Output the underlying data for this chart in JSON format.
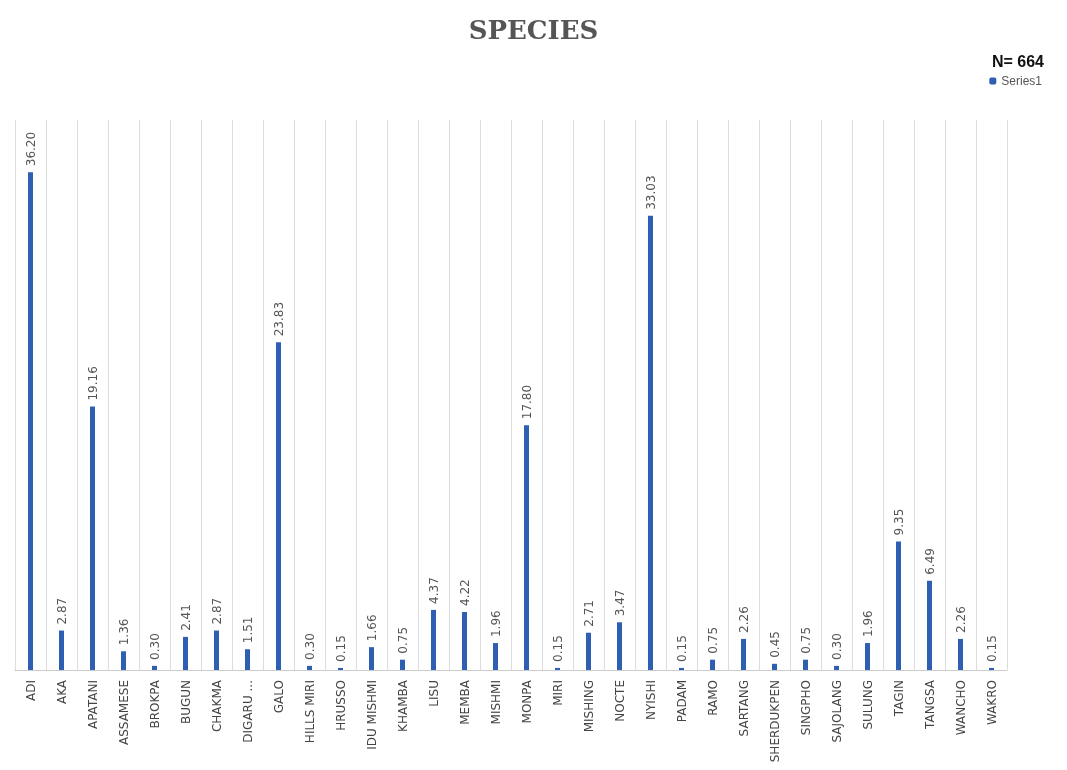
{
  "chart_data": {
    "type": "bar",
    "title": "SPECIES",
    "legend_title": "N= 664",
    "legend": "top right",
    "grid": "x",
    "categories": [
      "ADI",
      "AKA",
      "APATANI",
      "ASSAMESE",
      "BROKPA",
      "BUGUN",
      "CHAKMA",
      "DIGARU ...",
      "GALO",
      "HILLS MIRI",
      "HRUSSO",
      "IDU MISHMI",
      "KHAMBA",
      "LISU",
      "MEMBA",
      "MISHMI",
      "MONPA",
      "MIRI",
      "MISHING",
      "NOCTE",
      "NYISHI",
      "PADAM",
      "RAMO",
      "SARTANG",
      "SHERDUKPEN",
      "SINGPHO",
      "SAJOLANG",
      "SULUNG",
      "TAGIN",
      "TANGSA",
      "WANCHO",
      "WAKRO"
    ],
    "series": [
      {
        "name": "Series1",
        "color": "#2f5fb3",
        "values": [
          36.2,
          2.87,
          19.16,
          1.36,
          0.3,
          2.41,
          2.87,
          1.51,
          23.83,
          0.3,
          0.15,
          1.66,
          0.75,
          4.37,
          4.22,
          1.96,
          17.8,
          0.15,
          2.71,
          3.47,
          33.03,
          0.15,
          0.75,
          2.26,
          0.45,
          0.75,
          0.3,
          1.96,
          9.35,
          6.49,
          2.26,
          0.15
        ],
        "value_labels": [
          "36.20",
          "2.87",
          "19.16",
          "1.36",
          "0.30",
          "2.41",
          "2.87",
          "1.51",
          "23.83",
          "0.30",
          "0.15",
          "1.66",
          "0.75",
          "4.37",
          "4.22",
          "1.96",
          "17.80",
          "0.15",
          "2.71",
          "3.47",
          "33.03",
          "0.15",
          "0.75",
          "2.26",
          "0.45",
          "0.75",
          "0.30",
          "1.96",
          "9.35",
          "6.49",
          "2.26",
          "0.15"
        ]
      }
    ]
  }
}
